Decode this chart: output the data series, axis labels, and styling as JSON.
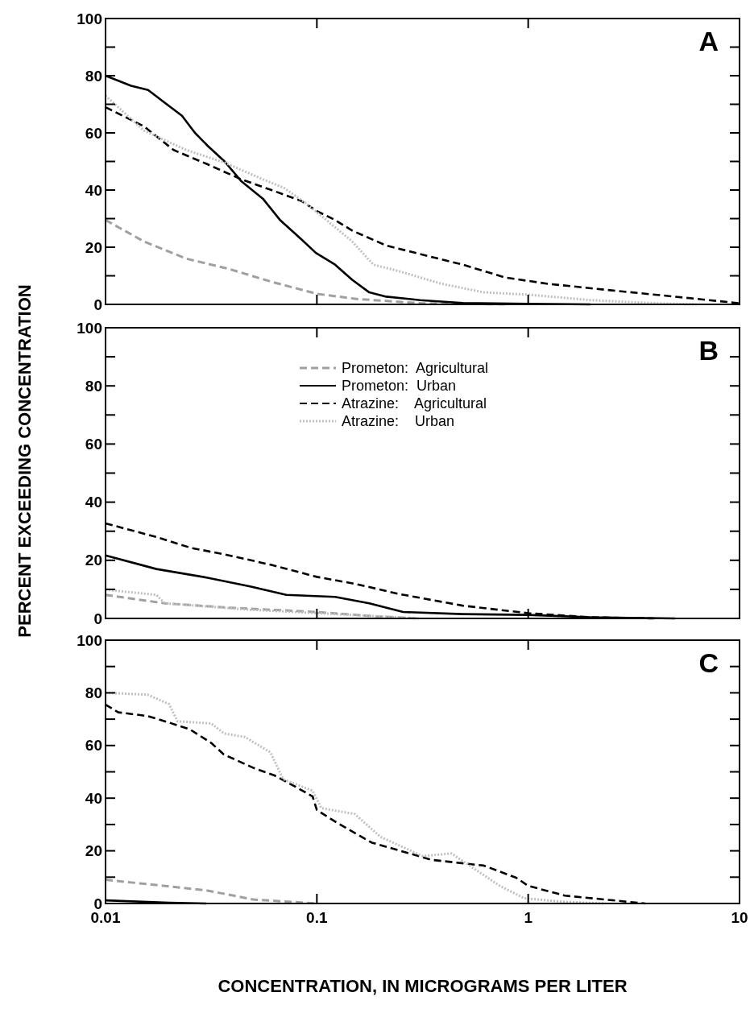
{
  "chart_data": [
    {
      "type": "line",
      "title": "A",
      "log": "x",
      "xlim": [
        0.01,
        10
      ],
      "xticks": [
        0.01,
        0.1,
        1,
        10
      ],
      "ylim": [
        0,
        100
      ],
      "yticks": [
        0,
        {
          "value": 10,
          "label": null
        },
        20,
        {
          "value": 30,
          "label": null
        },
        40,
        {
          "value": 50,
          "label": null
        },
        60,
        {
          "value": 70,
          "label": null
        },
        80,
        {
          "value": 90,
          "label": null
        },
        100
      ],
      "tick_labels": "y",
      "series": [
        {
          "color": "#a0a0a0",
          "line_style": "dashed",
          "x": [
            0.01,
            0.0152,
            0.0241,
            0.0384,
            0.061,
            0.1,
            0.154,
            0.308,
            0.778
          ],
          "values": [
            29.5,
            22,
            16,
            12.4,
            7.9,
            3.7,
            1.9,
            0.4,
            0
          ]
        },
        {
          "color": "#000000",
          "line_style": "solid",
          "x": [
            0.01,
            0.0132,
            0.0159,
            0.0191,
            0.023,
            0.0265,
            0.0304,
            0.0366,
            0.044,
            0.0555,
            0.0668,
            0.0843,
            0.099,
            0.122,
            0.147,
            0.177,
            0.213,
            0.308,
            0.49,
            1,
            1.97
          ],
          "values": [
            80,
            76.5,
            75,
            70.5,
            66,
            60,
            55.5,
            50,
            43,
            37,
            29.6,
            22.8,
            18,
            13.9,
            8.6,
            4.2,
            2.7,
            1.5,
            0.5,
            0.2,
            0
          ]
        },
        {
          "color": "#000000",
          "line_style": "dashed",
          "x": [
            0.01,
            0.0152,
            0.021,
            0.0304,
            0.044,
            0.061,
            0.0843,
            0.101,
            0.122,
            0.147,
            0.213,
            0.308,
            0.49,
            0.778,
            1.24,
            2.48,
            4.96,
            10
          ],
          "values": [
            69,
            62.3,
            54,
            49,
            43.7,
            40,
            36.2,
            32.5,
            29.5,
            25.8,
            20.6,
            17.6,
            13.9,
            9.4,
            7.2,
            4.9,
            2.7,
            0.4
          ]
        },
        {
          "color": "#c0c0c0",
          "line_style": "dotted",
          "x": [
            0.01,
            0.0152,
            0.0241,
            0.0366,
            0.053,
            0.07,
            0.0883,
            0.111,
            0.147,
            0.185,
            0.245,
            0.389,
            0.618,
            1,
            1.97,
            3.94,
            6.27
          ],
          "values": [
            73,
            60.8,
            54,
            49.6,
            44.4,
            40.7,
            35.5,
            29.5,
            22,
            13.9,
            11.6,
            7.2,
            4.2,
            3.4,
            1.5,
            0.4,
            0
          ]
        }
      ]
    },
    {
      "type": "line",
      "title": "B",
      "log": "x",
      "xlim": [
        0.01,
        10
      ],
      "xticks": [
        0.01,
        0.1,
        1,
        10
      ],
      "ylim": [
        0,
        100
      ],
      "yticks": [
        0,
        {
          "value": 10,
          "label": null
        },
        20,
        {
          "value": 30,
          "label": null
        },
        40,
        {
          "value": 50,
          "label": null
        },
        60,
        {
          "value": 70,
          "label": null
        },
        80,
        {
          "value": 90,
          "label": null
        },
        100
      ],
      "tick_labels": "y",
      "legend": "top",
      "ylabel": "PERCENT EXCEEDING CONCENTRATION",
      "series": [
        {
          "name": "Prometon:  Agricultural",
          "color": "#a0a0a0",
          "line_style": "dashed",
          "x": [
            0.01,
            0.0191,
            0.0384,
            0.1,
            0.19,
            0.308
          ],
          "values": [
            8.1,
            5.2,
            3.7,
            2.2,
            0.7,
            0
          ]
        },
        {
          "name": "Prometon:  Urban",
          "color": "#000000",
          "line_style": "solid",
          "x": [
            0.01,
            0.0174,
            0.0304,
            0.0483,
            0.0717,
            0.122,
            0.177,
            0.256,
            0.49,
            1,
            1.97,
            4.96
          ],
          "values": [
            21.7,
            17,
            14,
            11,
            8.1,
            7.4,
            5.2,
            2.2,
            1.5,
            1.2,
            0.4,
            0
          ]
        },
        {
          "name": "Atrazine:    Agricultural",
          "color": "#000000",
          "line_style": "dashed",
          "x": [
            0.01,
            0.0174,
            0.0253,
            0.0384,
            0.061,
            0.1,
            0.154,
            0.245,
            0.49,
            1,
            1.97,
            3.94
          ],
          "values": [
            32.7,
            28,
            24.3,
            21.7,
            18.4,
            14.3,
            11.8,
            8.4,
            4.4,
            1.8,
            0.4,
            0
          ]
        },
        {
          "name": "Atrazine:    Urban",
          "color": "#c0c0c0",
          "line_style": "dotted",
          "x": [
            0.01,
            0.0174,
            0.0191,
            0.0483,
            0.122,
            0.308
          ],
          "values": [
            9.9,
            8.1,
            5.2,
            3,
            1.5,
            0
          ]
        }
      ]
    },
    {
      "type": "line",
      "title": "C",
      "log": "x",
      "xlim": [
        0.01,
        10
      ],
      "xticks": [
        0.01,
        0.1,
        1,
        10
      ],
      "ylim": [
        0,
        100
      ],
      "yticks": [
        0,
        {
          "value": 10,
          "label": null
        },
        20,
        {
          "value": 30,
          "label": null
        },
        40,
        {
          "value": 50,
          "label": null
        },
        60,
        {
          "value": 70,
          "label": null
        },
        80,
        {
          "value": 90,
          "label": null
        },
        100
      ],
      "xlabel": "CONCENTRATION, IN MICROGRAMS PER LITER",
      "series": [
        {
          "color": "#a0a0a0",
          "line_style": "dashed",
          "x": [
            0.01,
            0.02,
            0.03,
            0.05,
            0.08,
            0.1
          ],
          "values": [
            9,
            6.5,
            5,
            1.5,
            0.5,
            0
          ]
        },
        {
          "color": "#000000",
          "line_style": "solid",
          "x": [
            0.01,
            0.02,
            0.03
          ],
          "values": [
            1.2,
            0.3,
            0
          ]
        },
        {
          "color": "#000000",
          "line_style": "dashed",
          "x": [
            0.01,
            0.0115,
            0.0158,
            0.02,
            0.0251,
            0.0316,
            0.0363,
            0.0501,
            0.0631,
            0.0794,
            0.0955,
            0.1,
            0.126,
            0.182,
            0.275,
            0.347,
            0.616,
            0.877,
            1,
            1.49,
            2.52,
            3.58
          ],
          "values": [
            75.5,
            72.6,
            71.2,
            68.7,
            66.1,
            61,
            56.6,
            51.5,
            48.6,
            44.3,
            40.6,
            35.5,
            30.4,
            23.1,
            19,
            16.6,
            14.4,
            9.8,
            6.7,
            3,
            1.2,
            0
          ]
        },
        {
          "color": "#c0c0c0",
          "line_style": "dotted",
          "x": [
            0.01,
            0.0158,
            0.02,
            0.0219,
            0.0316,
            0.0363,
            0.0457,
            0.0603,
            0.0692,
            0.0955,
            0.105,
            0.151,
            0.2,
            0.316,
            0.434,
            0.565,
            0.734,
            0.957,
            1.49,
            2.31
          ],
          "values": [
            80,
            79.3,
            75.7,
            69.2,
            68.4,
            64.6,
            63.2,
            57.4,
            47.2,
            42.8,
            36.2,
            34,
            25.3,
            18,
            19,
            12.8,
            6.7,
            2,
            0.6,
            0
          ]
        }
      ]
    }
  ]
}
